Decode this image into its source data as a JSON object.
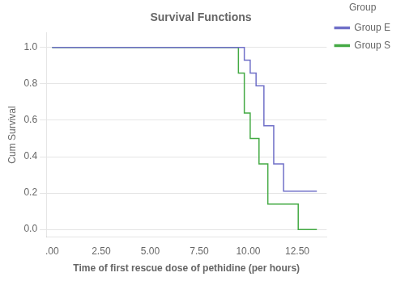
{
  "chart_data": {
    "type": "step",
    "title": "Survival Functions",
    "x_label": "Time of first rescue dose of pethidine (per hours)",
    "y_label": "Cum Survival",
    "xlim": [
      -0.3,
      14.0
    ],
    "ylim": [
      -0.04,
      1.08
    ],
    "xticks": [
      {
        "value": 0.0,
        "label": ".00"
      },
      {
        "value": 2.5,
        "label": "2.50"
      },
      {
        "value": 5.0,
        "label": "5.00"
      },
      {
        "value": 7.5,
        "label": "7.50"
      },
      {
        "value": 10.0,
        "label": "10.00"
      },
      {
        "value": 12.5,
        "label": "12.50"
      }
    ],
    "yticks": [
      {
        "value": 0.0,
        "label": "0.0"
      },
      0.2,
      0.4,
      0.6,
      0.8,
      {
        "value": 1.0,
        "label": "1.0"
      }
    ],
    "grid": "y",
    "legend": "right",
    "legend_title": "Group",
    "series": [
      {
        "name": "Group E",
        "color": "#7070c8",
        "x": [
          0,
          9.8,
          9.8,
          10.1,
          10.1,
          10.4,
          10.4,
          10.8,
          10.8,
          11.3,
          11.3,
          11.8,
          11.8,
          12.2,
          12.2,
          12.55,
          12.55,
          13.5
        ],
        "values": [
          1.0,
          1.0,
          0.93,
          0.93,
          0.86,
          0.86,
          0.79,
          0.79,
          0.57,
          0.57,
          0.36,
          0.36,
          0.21,
          0.21,
          0.21,
          0.21,
          0.21,
          0.21
        ]
      },
      {
        "name": "Group S",
        "color": "#44aa44",
        "x": [
          0,
          9.5,
          9.5,
          9.8,
          9.8,
          10.1,
          10.1,
          10.55,
          10.55,
          11.0,
          11.0,
          11.8,
          11.8,
          12.2,
          12.2,
          12.55,
          12.55,
          12.8,
          12.8,
          13.5
        ],
        "values": [
          1.0,
          1.0,
          0.86,
          0.86,
          0.64,
          0.64,
          0.5,
          0.5,
          0.36,
          0.36,
          0.14,
          0.14,
          0.14,
          0.14,
          0.14,
          0.14,
          0.0,
          0.0,
          0.0,
          0.0
        ]
      }
    ]
  }
}
